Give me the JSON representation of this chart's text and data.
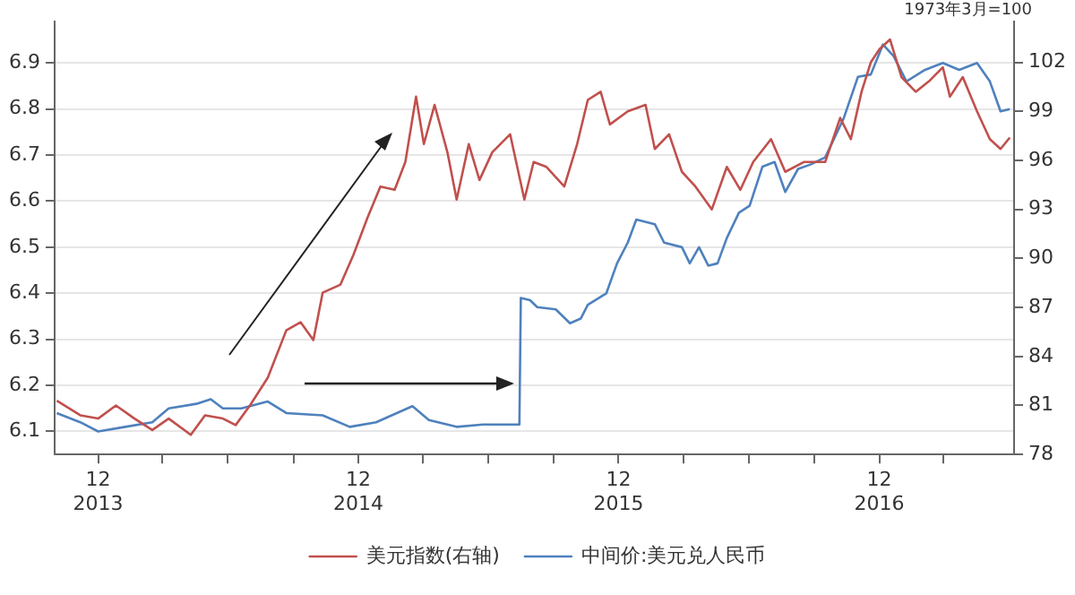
{
  "chart_data": {
    "type": "line",
    "y2label": "1973年3月=100",
    "xlim": [
      "2013-10-01",
      "2017-06-08"
    ],
    "xticks": [
      {
        "value": "2013-12-01",
        "label": "12\n2013"
      },
      {
        "value": "2014-03-01",
        "label": null
      },
      {
        "value": "2014-06-01",
        "label": null
      },
      {
        "value": "2014-09-01",
        "label": null
      },
      {
        "value": "2014-12-01",
        "label": "12\n2014"
      },
      {
        "value": "2015-03-01",
        "label": null
      },
      {
        "value": "2015-06-01",
        "label": null
      },
      {
        "value": "2015-09-01",
        "label": null
      },
      {
        "value": "2015-12-01",
        "label": "12\n2015"
      },
      {
        "value": "2016-03-01",
        "label": null
      },
      {
        "value": "2016-06-01",
        "label": null
      },
      {
        "value": "2016-09-01",
        "label": null
      },
      {
        "value": "2016-12-01",
        "label": "12\n2016"
      },
      {
        "value": "2017-03-01",
        "label": null
      }
    ],
    "ylim": [
      6.05,
      6.99
    ],
    "yticks": [
      6.1,
      6.2,
      6.3,
      6.4,
      6.5,
      6.6,
      6.7,
      6.8,
      6.9
    ],
    "y2lim": [
      78,
      104.5
    ],
    "y2ticks": [
      78,
      81,
      84,
      87,
      90,
      93,
      96,
      99,
      102
    ],
    "grid": "y",
    "legend": "bottom",
    "marker": "none",
    "line_style": "solid",
    "series": [
      {
        "name": "美元指数(右轴)",
        "color": "#c0504d",
        "axis": "y2",
        "x": [
          "2013-10-04",
          "2013-11-06",
          "2013-12-01",
          "2013-12-26",
          "2014-01-21",
          "2014-02-15",
          "2014-03-10",
          "2014-04-10",
          "2014-04-30",
          "2014-05-25",
          "2014-06-12",
          "2014-07-02",
          "2014-07-27",
          "2014-08-22",
          "2014-09-11",
          "2014-09-29",
          "2014-10-12",
          "2014-11-06",
          "2014-11-24",
          "2014-12-14",
          "2015-01-01",
          "2015-01-21",
          "2015-02-05",
          "2015-02-20",
          "2015-03-03",
          "2015-03-18",
          "2015-04-05",
          "2015-04-18",
          "2015-05-05",
          "2015-05-20",
          "2015-06-07",
          "2015-07-02",
          "2015-07-22",
          "2015-08-04",
          "2015-08-22",
          "2015-09-16",
          "2015-10-04",
          "2015-10-19",
          "2015-11-06",
          "2015-11-19",
          "2015-12-14",
          "2016-01-08",
          "2016-01-21",
          "2016-02-10",
          "2016-02-28",
          "2016-03-18",
          "2016-04-10",
          "2016-05-01",
          "2016-05-20",
          "2016-06-07",
          "2016-07-02",
          "2016-07-22",
          "2016-08-17",
          "2016-09-16",
          "2016-10-07",
          "2016-10-22",
          "2016-11-06",
          "2016-11-19",
          "2016-12-01",
          "2016-12-16",
          "2017-01-01",
          "2017-01-21",
          "2017-02-10",
          "2017-02-28",
          "2017-03-10",
          "2017-03-28",
          "2017-04-17",
          "2017-05-05",
          "2017-05-20",
          "2017-06-02"
        ],
        "values": [
          81.3,
          80.4,
          80.2,
          81,
          80.2,
          79.5,
          80.2,
          79.2,
          80.4,
          80.2,
          79.8,
          81,
          82.7,
          85.6,
          86.1,
          85,
          87.9,
          88.4,
          90.2,
          92.5,
          94.4,
          94.2,
          95.9,
          99.9,
          97,
          99.4,
          96.5,
          93.6,
          97,
          94.8,
          96.5,
          97.6,
          93.6,
          95.9,
          95.6,
          94.4,
          97,
          99.7,
          100.2,
          98.2,
          99,
          99.4,
          96.7,
          97.6,
          95.3,
          94.4,
          93,
          95.6,
          94.2,
          95.9,
          97.3,
          95.3,
          95.9,
          95.9,
          98.6,
          97.3,
          100.2,
          102,
          102.8,
          103.4,
          101.1,
          100.2,
          100.9,
          101.7,
          99.9,
          101.1,
          99,
          97.3,
          96.7,
          97.4
        ]
      },
      {
        "name": "中间价:美元兑人民币",
        "color": "#4f81bd",
        "x": [
          "2013-10-04",
          "2013-11-06",
          "2013-12-01",
          "2014-01-08",
          "2014-02-15",
          "2014-03-10",
          "2014-04-18",
          "2014-05-08",
          "2014-05-25",
          "2014-06-20",
          "2014-07-27",
          "2014-08-22",
          "2014-10-12",
          "2014-11-19",
          "2014-12-26",
          "2015-02-15",
          "2015-03-10",
          "2015-04-18",
          "2015-05-25",
          "2015-07-15",
          "2015-07-17",
          "2015-07-30",
          "2015-08-09",
          "2015-09-04",
          "2015-09-24",
          "2015-10-09",
          "2015-10-19",
          "2015-11-14",
          "2015-11-29",
          "2015-12-14",
          "2015-12-26",
          "2016-01-21",
          "2016-02-03",
          "2016-02-28",
          "2016-03-10",
          "2016-03-23",
          "2016-04-05",
          "2016-04-18",
          "2016-05-01",
          "2016-05-18",
          "2016-06-02",
          "2016-06-20",
          "2016-07-07",
          "2016-07-22",
          "2016-08-09",
          "2016-08-27",
          "2016-09-16",
          "2016-10-12",
          "2016-11-01",
          "2016-11-19",
          "2016-12-06",
          "2016-12-21",
          "2017-01-08",
          "2017-02-03",
          "2017-02-28",
          "2017-03-23",
          "2017-04-17",
          "2017-05-05",
          "2017-05-20",
          "2017-06-02"
        ],
        "values": [
          6.14,
          6.12,
          6.1,
          6.11,
          6.12,
          6.15,
          6.16,
          6.17,
          6.15,
          6.15,
          6.165,
          6.14,
          6.135,
          6.11,
          6.12,
          6.155,
          6.125,
          6.11,
          6.115,
          6.115,
          6.39,
          6.385,
          6.37,
          6.365,
          6.335,
          6.345,
          6.375,
          6.4,
          6.465,
          6.51,
          6.56,
          6.55,
          6.51,
          6.5,
          6.465,
          6.5,
          6.46,
          6.465,
          6.52,
          6.575,
          6.59,
          6.675,
          6.685,
          6.62,
          6.67,
          6.68,
          6.695,
          6.78,
          6.87,
          6.875,
          6.94,
          6.915,
          6.86,
          6.885,
          6.9,
          6.885,
          6.9,
          6.86,
          6.795,
          6.8
        ]
      }
    ]
  }
}
